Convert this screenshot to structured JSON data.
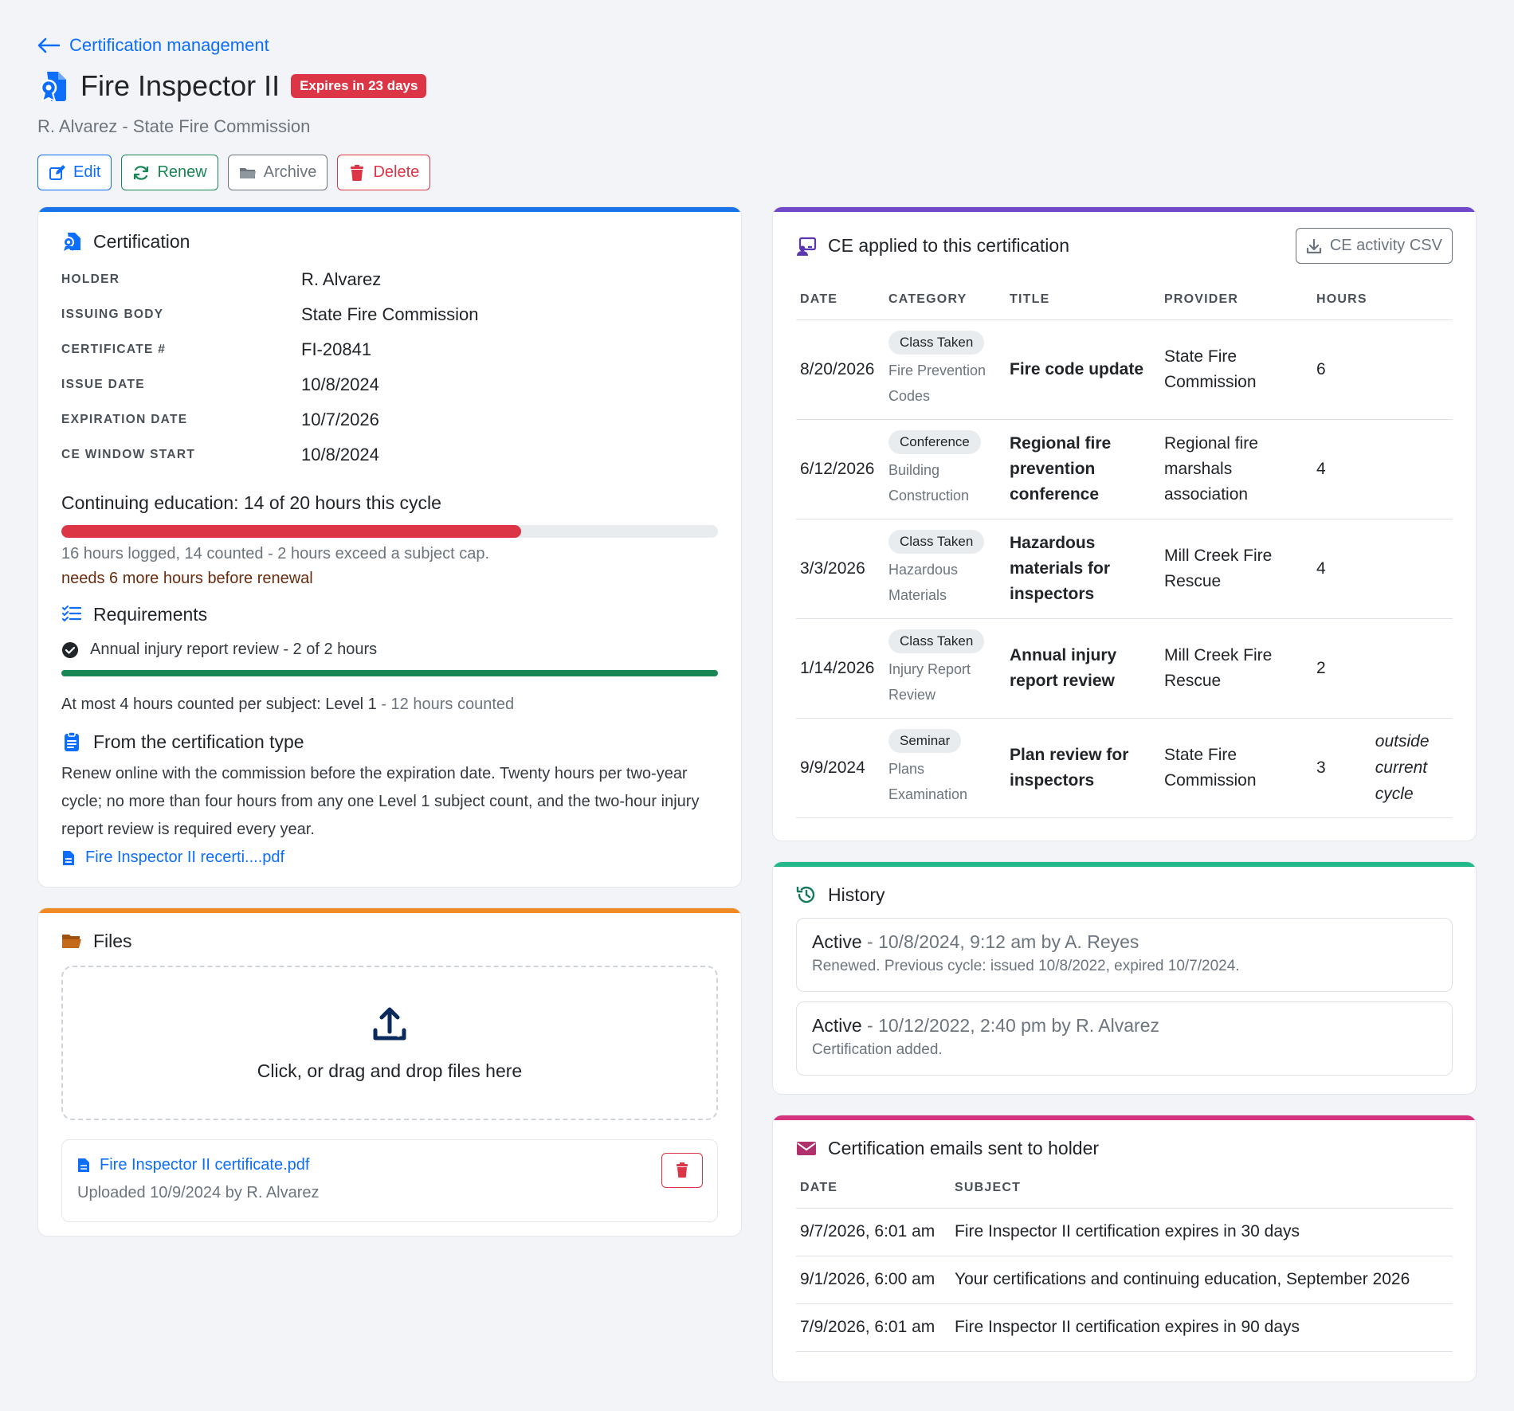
{
  "header": {
    "back_label": "Certification management",
    "title": "Fire Inspector II",
    "expiry_badge": "Expires in 23 days",
    "subtitle": "R. Alvarez - State Fire Commission",
    "actions": {
      "edit": "Edit",
      "renew": "Renew",
      "archive": "Archive",
      "delete": "Delete"
    }
  },
  "certification": {
    "title": "Certification",
    "fields": [
      {
        "label": "HOLDER",
        "value": "R. Alvarez"
      },
      {
        "label": "ISSUING BODY",
        "value": "State Fire Commission"
      },
      {
        "label": "CERTIFICATE #",
        "value": "FI-20841"
      },
      {
        "label": "ISSUE DATE",
        "value": "10/8/2024"
      },
      {
        "label": "EXPIRATION DATE",
        "value": "10/7/2026"
      },
      {
        "label": "CE WINDOW START",
        "value": "10/8/2024"
      }
    ],
    "ce_heading": "Continuing education: 14 of 20 hours this cycle",
    "ce_progress": 0.7,
    "ce_note": "16 hours logged, 14 counted - 2 hours exceed a subject cap.",
    "ce_needs": "needs 6 more hours before renewal",
    "requirements_title": "Requirements",
    "requirement": "Annual injury report review - 2 of 2 hours",
    "requirement_progress": 1.0,
    "cap_note": "At most 4 hours counted per subject: Level 1",
    "cap_note_suffix": " - 12 hours counted",
    "type_title": "From the certification type",
    "type_text": "Renew online with the commission before the expiration date. Twenty hours per two-year cycle; no more than four hours from any one Level 1 subject count, and the two-hour injury report review is required every year.",
    "type_file": "Fire Inspector II recerti....pdf"
  },
  "files": {
    "title": "Files",
    "dropzone_text": "Click, or drag and drop files here",
    "items": [
      {
        "name": "Fire Inspector II certificate.pdf",
        "meta": "Uploaded 10/9/2024 by R. Alvarez"
      }
    ]
  },
  "ce_applied": {
    "title": "CE applied to this certification",
    "csv_label": "CE activity CSV",
    "columns": [
      "DATE",
      "CATEGORY",
      "TITLE",
      "PROVIDER",
      "HOURS"
    ],
    "rows": [
      {
        "date": "8/20/2026",
        "type": "Class Taken",
        "category": "Fire Prevention Codes",
        "title": "Fire code update",
        "provider": "State Fire Commission",
        "hours": "6",
        "note": ""
      },
      {
        "date": "6/12/2026",
        "type": "Conference",
        "category": "Building Construction",
        "title": "Regional fire prevention conference",
        "provider": "Regional fire marshals association",
        "hours": "4",
        "note": ""
      },
      {
        "date": "3/3/2026",
        "type": "Class Taken",
        "category": "Hazardous Materials",
        "title": "Hazardous materials for inspectors",
        "provider": "Mill Creek Fire Rescue",
        "hours": "4",
        "note": ""
      },
      {
        "date": "1/14/2026",
        "type": "Class Taken",
        "category": "Injury Report Review",
        "title": "Annual injury report review",
        "provider": "Mill Creek Fire Rescue",
        "hours": "2",
        "note": ""
      },
      {
        "date": "9/9/2024",
        "type": "Seminar",
        "category": "Plans Examination",
        "title": "Plan review for inspectors",
        "provider": "State Fire Commission",
        "hours": "3",
        "note": "outside current cycle"
      }
    ]
  },
  "history": {
    "title": "History",
    "items": [
      {
        "status": "Active",
        "when": " - 10/8/2024, 9:12 am by A. Reyes",
        "detail": "Renewed. Previous cycle: issued 10/8/2022, expired 10/7/2024."
      },
      {
        "status": "Active",
        "when": " - 10/12/2022, 2:40 pm by R. Alvarez",
        "detail": "Certification added."
      }
    ]
  },
  "emails": {
    "title": "Certification emails sent to holder",
    "columns": [
      "DATE",
      "SUBJECT"
    ],
    "rows": [
      {
        "date": "9/7/2026, 6:01 am",
        "subject": "Fire Inspector II certification expires in 30 days"
      },
      {
        "date": "9/1/2026, 6:00 am",
        "subject": "Your certifications and continuing education, September 2026"
      },
      {
        "date": "7/9/2026, 6:01 am",
        "subject": "Fire Inspector II certification expires in 90 days"
      }
    ]
  },
  "colors": {
    "primary": "#0d6efd",
    "success": "#198754",
    "danger": "#dc3545",
    "certification_bar": "#1a73e8",
    "files_bar": "#f08a24",
    "ce_bar": "#7048c8",
    "history_bar": "#22b88a",
    "emails_bar": "#d6337f"
  },
  "icons": {
    "back": "arrow-left-icon",
    "certificate": "award-icon",
    "edit": "pencil-square-icon",
    "renew": "arrow-repeat-icon",
    "archive": "folder-icon",
    "delete": "trash-icon",
    "requirements": "list-check-icon",
    "type": "clipboard-icon",
    "file": "file-earmark-icon",
    "upload": "upload-icon",
    "ce": "person-video-icon",
    "download": "download-icon",
    "history": "clock-history-icon",
    "email": "envelope-icon"
  }
}
